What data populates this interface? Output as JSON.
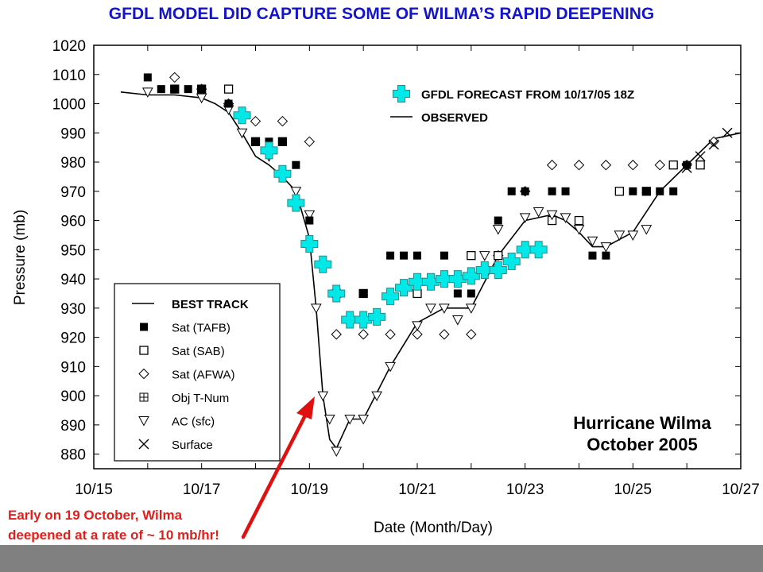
{
  "slide": {
    "title": "GFDL MODEL DID CAPTURE SOME OF WILMA’S RAPID DEEPENING",
    "callout": [
      "Early on 19 October, Wilma",
      "deepened at a rate of ~ 10 mb/hr!"
    ],
    "colors": {
      "title": "#1414c8",
      "callout": "#e0201c",
      "arrow": "#e01010",
      "gfdl_marker": "#00e8e8",
      "band": "#808080"
    }
  },
  "chart_data": {
    "type": "scatter",
    "title": "",
    "xlabel": "Date (Month/Day)",
    "ylabel": "Pressure (mb)",
    "xlim": [
      "10/15",
      "10/27"
    ],
    "ylim": [
      875,
      1020
    ],
    "x_ticks": [
      "10/15",
      "10/17",
      "10/19",
      "10/21",
      "10/23",
      "10/25",
      "10/27"
    ],
    "y_ticks": [
      880,
      890,
      900,
      910,
      920,
      930,
      940,
      950,
      960,
      970,
      980,
      990,
      1000,
      1010,
      1020
    ],
    "grid": true,
    "annotation": [
      "Hurricane Wilma",
      "October 2005"
    ],
    "top_legend": [
      {
        "label": "GFDL FORECAST FROM 10/17/05 18Z",
        "marker": "cross"
      },
      {
        "label": "OBSERVED",
        "marker": "line"
      }
    ],
    "legend": [
      {
        "label": "BEST TRACK",
        "marker": "line"
      },
      {
        "label": "Sat (TAFB)",
        "marker": "filled-square"
      },
      {
        "label": "Sat (SAB)",
        "marker": "open-square"
      },
      {
        "label": "Sat (AFWA)",
        "marker": "diamond"
      },
      {
        "label": "Obj T-Num",
        "marker": "plus-square"
      },
      {
        "label": "AC (sfc)",
        "marker": "triangle-down"
      },
      {
        "label": "Surface",
        "marker": "x"
      }
    ],
    "series": [
      {
        "name": "BEST TRACK",
        "style": "line",
        "points": [
          [
            "10/15 12Z",
            1004
          ],
          [
            "10/16 00Z",
            1003
          ],
          [
            "10/16 12Z",
            1003
          ],
          [
            "10/17 00Z",
            1002
          ],
          [
            "10/17 06Z",
            1000
          ],
          [
            "10/17 12Z",
            997
          ],
          [
            "10/17 18Z",
            990
          ],
          [
            "10/18 00Z",
            982
          ],
          [
            "10/18 06Z",
            979
          ],
          [
            "10/18 12Z",
            975
          ],
          [
            "10/18 18Z",
            970
          ],
          [
            "10/19 00Z",
            954
          ],
          [
            "10/19 03Z",
            930
          ],
          [
            "10/19 06Z",
            900
          ],
          [
            "10/19 09Z",
            885
          ],
          [
            "10/19 12Z",
            882
          ],
          [
            "10/19 18Z",
            892
          ],
          [
            "10/20 00Z",
            892
          ],
          [
            "10/20 12Z",
            910
          ],
          [
            "10/21 00Z",
            925
          ],
          [
            "10/21 12Z",
            930
          ],
          [
            "10/21 18Z",
            930
          ],
          [
            "10/22 00Z",
            930
          ],
          [
            "10/22 12Z",
            948
          ],
          [
            "10/23 00Z",
            960
          ],
          [
            "10/23 06Z",
            961
          ],
          [
            "10/23 12Z",
            962
          ],
          [
            "10/23 18Z",
            960
          ],
          [
            "10/24 00Z",
            956
          ],
          [
            "10/24 06Z",
            951
          ],
          [
            "10/24 12Z",
            951
          ],
          [
            "10/25 00Z",
            956
          ],
          [
            "10/25 12Z",
            970
          ],
          [
            "10/26 00Z",
            979
          ],
          [
            "10/26 12Z",
            988
          ],
          [
            "10/27 00Z",
            990
          ]
        ]
      },
      {
        "name": "Sat (TAFB)",
        "marker": "filled-square",
        "points": [
          [
            "10/16 00Z",
            1009
          ],
          [
            "10/16 06Z",
            1005
          ],
          [
            "10/16 12Z",
            1005
          ],
          [
            "10/16 18Z",
            1005
          ],
          [
            "10/17 00Z",
            1005
          ],
          [
            "10/17 12Z",
            1000
          ],
          [
            "10/18 00Z",
            987
          ],
          [
            "10/18 06Z",
            987
          ],
          [
            "10/18 12Z",
            987
          ],
          [
            "10/18 18Z",
            979
          ],
          [
            "10/19 00Z",
            960
          ],
          [
            "10/19 12Z",
            935
          ],
          [
            "10/20 00Z",
            935
          ],
          [
            "10/20 12Z",
            948
          ],
          [
            "10/20 18Z",
            948
          ],
          [
            "10/21 00Z",
            948
          ],
          [
            "10/21 12Z",
            948
          ],
          [
            "10/21 18Z",
            935
          ],
          [
            "10/22 00Z",
            935
          ],
          [
            "10/22 12Z",
            960
          ],
          [
            "10/22 18Z",
            970
          ],
          [
            "10/23 00Z",
            970
          ],
          [
            "10/23 12Z",
            970
          ],
          [
            "10/23 18Z",
            970
          ],
          [
            "10/24 06Z",
            948
          ],
          [
            "10/24 12Z",
            948
          ],
          [
            "10/25 00Z",
            970
          ],
          [
            "10/25 06Z",
            970
          ],
          [
            "10/25 12Z",
            970
          ],
          [
            "10/25 18Z",
            970
          ],
          [
            "10/26 00Z",
            979
          ]
        ]
      },
      {
        "name": "Sat (SAB)",
        "marker": "open-square",
        "points": [
          [
            "10/16 12Z",
            1005
          ],
          [
            "10/17 00Z",
            1005
          ],
          [
            "10/17 12Z",
            1005
          ],
          [
            "10/18 00Z",
            987
          ],
          [
            "10/18 12Z",
            987
          ],
          [
            "10/19 12Z",
            935
          ],
          [
            "10/20 00Z",
            935
          ],
          [
            "10/21 00Z",
            935
          ],
          [
            "10/22 00Z",
            948
          ],
          [
            "10/22 12Z",
            948
          ],
          [
            "10/23 12Z",
            960
          ],
          [
            "10/24 00Z",
            960
          ],
          [
            "10/24 18Z",
            970
          ],
          [
            "10/25 06Z",
            970
          ],
          [
            "10/25 18Z",
            979
          ],
          [
            "10/26 06Z",
            979
          ]
        ]
      },
      {
        "name": "Sat (AFWA)",
        "marker": "diamond",
        "points": [
          [
            "10/16 12Z",
            1009
          ],
          [
            "10/17 00Z",
            1005
          ],
          [
            "10/17 12Z",
            1000
          ],
          [
            "10/18 00Z",
            994
          ],
          [
            "10/18 12Z",
            994
          ],
          [
            "10/19 00Z",
            987
          ],
          [
            "10/19 12Z",
            921
          ],
          [
            "10/20 00Z",
            921
          ],
          [
            "10/20 12Z",
            921
          ],
          [
            "10/21 00Z",
            921
          ],
          [
            "10/21 12Z",
            921
          ],
          [
            "10/22 00Z",
            921
          ],
          [
            "10/22 12Z",
            948
          ],
          [
            "10/23 00Z",
            970
          ],
          [
            "10/23 12Z",
            979
          ],
          [
            "10/24 00Z",
            979
          ],
          [
            "10/24 12Z",
            979
          ],
          [
            "10/25 00Z",
            979
          ],
          [
            "10/25 12Z",
            979
          ],
          [
            "10/26 00Z",
            979
          ],
          [
            "10/26 12Z",
            987
          ]
        ]
      },
      {
        "name": "Obj T-Num",
        "marker": "plus-square",
        "points": []
      },
      {
        "name": "AC (sfc)",
        "marker": "triangle-down",
        "points": [
          [
            "10/16 00Z",
            1004
          ],
          [
            "10/17 00Z",
            1002
          ],
          [
            "10/17 12Z",
            998
          ],
          [
            "10/17 18Z",
            990
          ],
          [
            "10/18 06Z",
            982
          ],
          [
            "10/18 12Z",
            975
          ],
          [
            "10/18 18Z",
            970
          ],
          [
            "10/19 00Z",
            962
          ],
          [
            "10/19 03Z",
            930
          ],
          [
            "10/19 06Z",
            900
          ],
          [
            "10/19 09Z",
            892
          ],
          [
            "10/19 12Z",
            881
          ],
          [
            "10/19 18Z",
            892
          ],
          [
            "10/20 00Z",
            892
          ],
          [
            "10/20 06Z",
            900
          ],
          [
            "10/20 12Z",
            910
          ],
          [
            "10/21 00Z",
            924
          ],
          [
            "10/21 06Z",
            930
          ],
          [
            "10/21 12Z",
            930
          ],
          [
            "10/21 18Z",
            926
          ],
          [
            "10/22 00Z",
            930
          ],
          [
            "10/22 06Z",
            948
          ],
          [
            "10/22 12Z",
            957
          ],
          [
            "10/23 00Z",
            961
          ],
          [
            "10/23 06Z",
            963
          ],
          [
            "10/23 12Z",
            962
          ],
          [
            "10/23 18Z",
            961
          ],
          [
            "10/24 00Z",
            957
          ],
          [
            "10/24 06Z",
            953
          ],
          [
            "10/24 12Z",
            951
          ],
          [
            "10/24 18Z",
            955
          ],
          [
            "10/25 00Z",
            955
          ],
          [
            "10/25 06Z",
            957
          ]
        ]
      },
      {
        "name": "Surface",
        "marker": "x",
        "points": [
          [
            "10/26 00Z",
            978
          ],
          [
            "10/26 06Z",
            982
          ],
          [
            "10/26 12Z",
            986
          ],
          [
            "10/26 18Z",
            990
          ]
        ]
      },
      {
        "name": "GFDL FORECAST FROM 10/17/05 18Z",
        "marker": "cross",
        "points": [
          [
            "10/17 18Z",
            996
          ],
          [
            "10/18 06Z",
            984
          ],
          [
            "10/18 12Z",
            976
          ],
          [
            "10/18 18Z",
            966
          ],
          [
            "10/19 00Z",
            952
          ],
          [
            "10/19 06Z",
            945
          ],
          [
            "10/19 12Z",
            935
          ],
          [
            "10/19 18Z",
            926
          ],
          [
            "10/20 00Z",
            926
          ],
          [
            "10/20 06Z",
            927
          ],
          [
            "10/20 12Z",
            934
          ],
          [
            "10/20 18Z",
            937
          ],
          [
            "10/21 00Z",
            939
          ],
          [
            "10/21 06Z",
            939
          ],
          [
            "10/21 12Z",
            940
          ],
          [
            "10/21 18Z",
            940
          ],
          [
            "10/22 00Z",
            941
          ],
          [
            "10/22 06Z",
            943
          ],
          [
            "10/22 12Z",
            943
          ],
          [
            "10/22 18Z",
            946
          ],
          [
            "10/23 00Z",
            950
          ],
          [
            "10/23 06Z",
            950
          ]
        ]
      }
    ]
  }
}
